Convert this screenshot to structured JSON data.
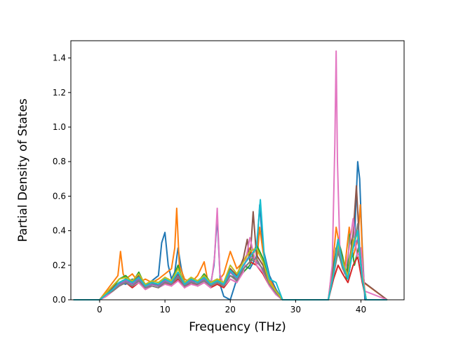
{
  "chart_data": {
    "type": "line",
    "title": "",
    "xlabel": "Frequency (THz)",
    "ylabel": "Partial Density of States",
    "xlim": [
      -4.4,
      46.6
    ],
    "ylim": [
      0.0,
      1.5
    ],
    "xticks": [
      0,
      10,
      20,
      30,
      40
    ],
    "yticks": [
      0.0,
      0.2,
      0.4,
      0.6,
      0.8,
      1.0,
      1.2,
      1.4
    ],
    "xtick_labels": [
      "0",
      "10",
      "20",
      "30",
      "40"
    ],
    "ytick_labels": [
      "0.0",
      "0.2",
      "0.4",
      "0.6",
      "0.8",
      "1.0",
      "1.2",
      "1.4"
    ],
    "grid": false,
    "legend": "none",
    "series_colors": [
      "#1f77b4",
      "#ff7f0e",
      "#2ca02c",
      "#d62728",
      "#9467bd",
      "#8c564b",
      "#e377c2",
      "#7f7f7f",
      "#bcbd22",
      "#17becf"
    ],
    "series": [
      {
        "color": "#1f77b4",
        "x": [
          -4.0,
          0.0,
          1.0,
          2.0,
          3.0,
          4.0,
          5.0,
          6.0,
          7.0,
          8.0,
          9.0,
          9.5,
          10.0,
          10.5,
          11.0,
          11.5,
          12.0,
          12.5,
          13.0,
          14.0,
          15.0,
          16.0,
          17.0,
          17.5,
          18.0,
          18.5,
          19.0,
          20.0,
          21.0,
          22.0,
          23.0,
          24.0,
          24.5,
          25.0,
          26.0,
          27.0,
          28.0,
          35.0,
          35.8,
          36.2,
          37.0,
          38.0,
          39.0,
          39.5,
          39.8,
          40.2,
          40.6,
          44.0
        ],
        "y": [
          0,
          0,
          0.04,
          0.06,
          0.1,
          0.09,
          0.12,
          0.1,
          0.08,
          0.11,
          0.14,
          0.33,
          0.39,
          0.2,
          0.12,
          0.16,
          0.3,
          0.18,
          0.1,
          0.12,
          0.08,
          0.1,
          0.09,
          0.2,
          0.48,
          0.08,
          0.02,
          0.0,
          0.12,
          0.2,
          0.18,
          0.25,
          0.55,
          0.3,
          0.14,
          0.06,
          0,
          0,
          0.15,
          0.3,
          0.22,
          0.12,
          0.35,
          0.8,
          0.7,
          0.3,
          0,
          0
        ]
      },
      {
        "color": "#ff7f0e",
        "x": [
          -4.0,
          0.0,
          1.0,
          2.0,
          2.8,
          3.2,
          3.6,
          4.0,
          5.0,
          6.0,
          7.0,
          8.0,
          9.0,
          10.0,
          11.0,
          11.5,
          11.8,
          12.2,
          13.0,
          14.0,
          15.0,
          16.0,
          16.5,
          17.0,
          18.0,
          19.0,
          20.0,
          21.0,
          22.0,
          23.0,
          24.0,
          24.5,
          25.0,
          26.0,
          27.0,
          28.0,
          35.0,
          35.8,
          36.2,
          36.8,
          37.5,
          38.2,
          38.8,
          39.5,
          39.9,
          40.4,
          44.0
        ],
        "y": [
          0,
          0,
          0.05,
          0.1,
          0.14,
          0.28,
          0.15,
          0.12,
          0.15,
          0.1,
          0.12,
          0.1,
          0.12,
          0.15,
          0.18,
          0.3,
          0.53,
          0.2,
          0.12,
          0.1,
          0.14,
          0.22,
          0.12,
          0.08,
          0.1,
          0.15,
          0.28,
          0.18,
          0.22,
          0.3,
          0.2,
          0.42,
          0.28,
          0.12,
          0.05,
          0,
          0,
          0.25,
          0.42,
          0.3,
          0.18,
          0.42,
          0.25,
          0.35,
          0.55,
          0.1,
          0
        ]
      },
      {
        "color": "#2ca02c",
        "x": [
          -4.0,
          0.0,
          1.0,
          2.0,
          3.0,
          4.0,
          5.0,
          6.0,
          7.0,
          8.0,
          9.0,
          10.0,
          11.0,
          12.0,
          13.0,
          14.0,
          15.0,
          16.0,
          17.0,
          18.0,
          19.0,
          20.0,
          21.0,
          22.0,
          23.0,
          24.0,
          25.0,
          26.0,
          27.0,
          28.0,
          35.0,
          35.8,
          36.5,
          37.2,
          37.8,
          38.3,
          39.0,
          39.6,
          40.2,
          40.8,
          44.0
        ],
        "y": [
          0,
          0,
          0.03,
          0.07,
          0.12,
          0.14,
          0.1,
          0.16,
          0.08,
          0.1,
          0.08,
          0.12,
          0.1,
          0.2,
          0.08,
          0.12,
          0.1,
          0.15,
          0.1,
          0.12,
          0.08,
          0.14,
          0.12,
          0.16,
          0.2,
          0.32,
          0.24,
          0.1,
          0.04,
          0,
          0,
          0.2,
          0.35,
          0.25,
          0.12,
          0.38,
          0.2,
          0.3,
          0.15,
          0,
          0
        ]
      },
      {
        "color": "#d62728",
        "x": [
          -4.0,
          0.0,
          1.0,
          2.0,
          3.0,
          4.0,
          5.0,
          6.0,
          7.0,
          8.0,
          9.0,
          10.0,
          11.0,
          12.0,
          13.0,
          14.0,
          15.0,
          16.0,
          17.0,
          18.0,
          19.0,
          20.0,
          21.0,
          22.0,
          23.0,
          24.0,
          25.0,
          26.0,
          27.0,
          28.0,
          35.0,
          35.8,
          36.5,
          37.2,
          38.0,
          38.8,
          39.5,
          40.2,
          40.8,
          44.0
        ],
        "y": [
          0,
          0,
          0.02,
          0.05,
          0.08,
          0.1,
          0.07,
          0.1,
          0.06,
          0.08,
          0.07,
          0.1,
          0.08,
          0.12,
          0.07,
          0.1,
          0.08,
          0.1,
          0.07,
          0.09,
          0.07,
          0.12,
          0.1,
          0.18,
          0.22,
          0.2,
          0.15,
          0.08,
          0.03,
          0,
          0,
          0.12,
          0.2,
          0.15,
          0.1,
          0.2,
          0.25,
          0.1,
          0,
          0
        ]
      },
      {
        "color": "#9467bd",
        "x": [
          -4.0,
          0.0,
          1.0,
          2.0,
          3.0,
          4.0,
          5.0,
          6.0,
          7.0,
          8.0,
          9.0,
          10.0,
          11.0,
          12.0,
          13.0,
          14.0,
          15.0,
          16.0,
          17.0,
          18.0,
          19.0,
          20.0,
          21.0,
          22.0,
          23.0,
          24.0,
          25.0,
          26.0,
          27.0,
          28.0,
          35.0,
          35.8,
          36.5,
          37.2,
          38.0,
          38.8,
          39.5,
          40.2,
          40.8,
          44.0
        ],
        "y": [
          0,
          0,
          0.03,
          0.06,
          0.09,
          0.11,
          0.09,
          0.12,
          0.07,
          0.09,
          0.08,
          0.11,
          0.09,
          0.14,
          0.08,
          0.11,
          0.09,
          0.12,
          0.08,
          0.1,
          0.08,
          0.16,
          0.12,
          0.2,
          0.26,
          0.22,
          0.18,
          0.09,
          0.04,
          0,
          0,
          0.15,
          0.3,
          0.2,
          0.12,
          0.3,
          0.35,
          0.12,
          0,
          0
        ]
      },
      {
        "color": "#8c564b",
        "x": [
          -4.0,
          0.0,
          1.0,
          2.0,
          3.0,
          4.0,
          5.0,
          6.0,
          7.0,
          8.0,
          9.0,
          10.0,
          11.0,
          12.0,
          13.0,
          14.0,
          15.0,
          16.0,
          17.0,
          18.0,
          19.0,
          20.0,
          21.0,
          22.0,
          22.6,
          23.0,
          23.5,
          24.0,
          25.0,
          26.0,
          27.0,
          28.0,
          35.0,
          35.8,
          36.5,
          37.2,
          38.0,
          38.8,
          39.3,
          39.8,
          40.5,
          44.0
        ],
        "y": [
          0,
          0,
          0.03,
          0.07,
          0.1,
          0.12,
          0.1,
          0.14,
          0.08,
          0.1,
          0.09,
          0.12,
          0.1,
          0.15,
          0.09,
          0.12,
          0.1,
          0.13,
          0.09,
          0.11,
          0.09,
          0.18,
          0.14,
          0.24,
          0.35,
          0.22,
          0.51,
          0.26,
          0.2,
          0.1,
          0.04,
          0,
          0,
          0.18,
          0.35,
          0.22,
          0.15,
          0.38,
          0.66,
          0.3,
          0.1,
          0
        ]
      },
      {
        "color": "#e377c2",
        "x": [
          -4.0,
          0.0,
          1.0,
          2.0,
          3.0,
          4.0,
          5.0,
          6.0,
          7.0,
          8.0,
          9.0,
          10.0,
          11.0,
          12.0,
          13.0,
          14.0,
          15.0,
          16.0,
          17.0,
          17.6,
          18.0,
          18.4,
          19.0,
          20.0,
          21.0,
          22.0,
          23.0,
          24.0,
          25.0,
          26.0,
          27.0,
          28.0,
          35.0,
          35.6,
          36.0,
          36.2,
          36.4,
          36.8,
          37.5,
          38.2,
          38.8,
          39.4,
          40.0,
          40.6,
          44.0
        ],
        "y": [
          0,
          0,
          0.02,
          0.05,
          0.08,
          0.1,
          0.08,
          0.1,
          0.06,
          0.08,
          0.07,
          0.09,
          0.08,
          0.11,
          0.07,
          0.09,
          0.08,
          0.1,
          0.07,
          0.25,
          0.53,
          0.15,
          0.08,
          0.12,
          0.1,
          0.16,
          0.36,
          0.2,
          0.16,
          0.08,
          0.03,
          0,
          0,
          0.2,
          0.9,
          1.44,
          0.8,
          0.25,
          0.15,
          0.3,
          0.47,
          0.25,
          0.3,
          0.05,
          0
        ]
      },
      {
        "color": "#7f7f7f",
        "x": [
          -4.0,
          0.0,
          1.0,
          2.0,
          3.0,
          4.0,
          5.0,
          6.0,
          7.0,
          8.0,
          9.0,
          10.0,
          11.0,
          12.0,
          13.0,
          14.0,
          15.0,
          16.0,
          17.0,
          18.0,
          19.0,
          20.0,
          21.0,
          22.0,
          23.0,
          24.0,
          25.0,
          26.0,
          27.0,
          28.0,
          35.0,
          35.8,
          36.5,
          37.2,
          38.0,
          38.8,
          39.5,
          40.2,
          40.8,
          44.0
        ],
        "y": [
          0,
          0,
          0.03,
          0.05,
          0.08,
          0.1,
          0.08,
          0.11,
          0.07,
          0.08,
          0.07,
          0.1,
          0.09,
          0.13,
          0.08,
          0.1,
          0.09,
          0.11,
          0.08,
          0.1,
          0.08,
          0.14,
          0.11,
          0.18,
          0.22,
          0.24,
          0.17,
          0.09,
          0.04,
          0,
          0,
          0.14,
          0.28,
          0.18,
          0.12,
          0.3,
          0.44,
          0.12,
          0,
          0
        ]
      },
      {
        "color": "#bcbd22",
        "x": [
          -4.0,
          0.0,
          1.0,
          2.0,
          3.0,
          4.0,
          5.0,
          6.0,
          7.0,
          8.0,
          9.0,
          10.0,
          11.0,
          12.0,
          13.0,
          14.0,
          15.0,
          16.0,
          17.0,
          18.0,
          19.0,
          20.0,
          21.0,
          22.0,
          23.0,
          24.0,
          25.0,
          26.0,
          27.0,
          28.0,
          35.0,
          35.8,
          36.5,
          37.2,
          38.0,
          38.8,
          39.5,
          40.2,
          40.8,
          44.0
        ],
        "y": [
          0,
          0,
          0.04,
          0.08,
          0.12,
          0.13,
          0.11,
          0.15,
          0.09,
          0.11,
          0.1,
          0.13,
          0.11,
          0.18,
          0.1,
          0.13,
          0.11,
          0.14,
          0.1,
          0.12,
          0.1,
          0.2,
          0.15,
          0.22,
          0.28,
          0.3,
          0.22,
          0.1,
          0.05,
          0,
          0,
          0.16,
          0.32,
          0.22,
          0.14,
          0.34,
          0.38,
          0.14,
          0,
          0
        ]
      },
      {
        "color": "#17becf",
        "x": [
          -4.0,
          0.0,
          1.0,
          2.0,
          3.0,
          4.0,
          5.0,
          6.0,
          7.0,
          8.0,
          9.0,
          10.0,
          11.0,
          12.0,
          13.0,
          14.0,
          15.0,
          16.0,
          17.0,
          18.0,
          19.0,
          20.0,
          21.0,
          22.0,
          23.0,
          24.0,
          24.6,
          25.2,
          26.0,
          27.0,
          28.0,
          35.0,
          35.8,
          36.5,
          37.2,
          38.0,
          38.8,
          39.5,
          40.2,
          40.8,
          44.0
        ],
        "y": [
          0,
          0,
          0.03,
          0.06,
          0.1,
          0.12,
          0.1,
          0.13,
          0.08,
          0.1,
          0.09,
          0.12,
          0.1,
          0.16,
          0.09,
          0.12,
          0.1,
          0.13,
          0.09,
          0.11,
          0.09,
          0.17,
          0.13,
          0.2,
          0.25,
          0.3,
          0.58,
          0.25,
          0.12,
          0.1,
          0,
          0,
          0.15,
          0.35,
          0.2,
          0.12,
          0.3,
          0.4,
          0.12,
          0,
          0
        ]
      }
    ]
  }
}
